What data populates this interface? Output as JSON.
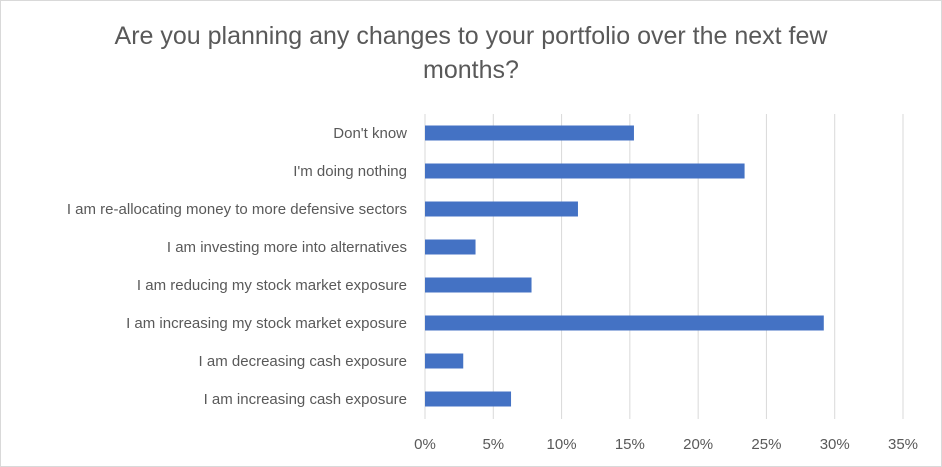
{
  "chart_data": {
    "type": "bar",
    "orientation": "horizontal",
    "title": "Are you planning any changes to your portfolio over the next few months?",
    "categories": [
      "Don't know",
      "I'm doing nothing",
      "I am re-allocating money to more defensive sectors",
      "I am investing more into alternatives",
      "I am reducing my stock market exposure",
      "I am increasing my stock market exposure",
      "I am decreasing cash exposure",
      "I am increasing cash exposure"
    ],
    "values": [
      15.3,
      23.4,
      11.2,
      3.7,
      7.8,
      29.2,
      2.8,
      6.3
    ],
    "xlim": [
      0,
      35
    ],
    "x_ticks": [
      0,
      5,
      10,
      15,
      20,
      25,
      30,
      35
    ],
    "x_tick_labels": [
      "0%",
      "5%",
      "10%",
      "15%",
      "20%",
      "25%",
      "30%",
      "35%"
    ],
    "xlabel": "",
    "ylabel": "",
    "grid": true,
    "legend": "none",
    "bar_color": "#4472c4",
    "gridline_color": "#d9d9d9",
    "text_color": "#595959"
  }
}
